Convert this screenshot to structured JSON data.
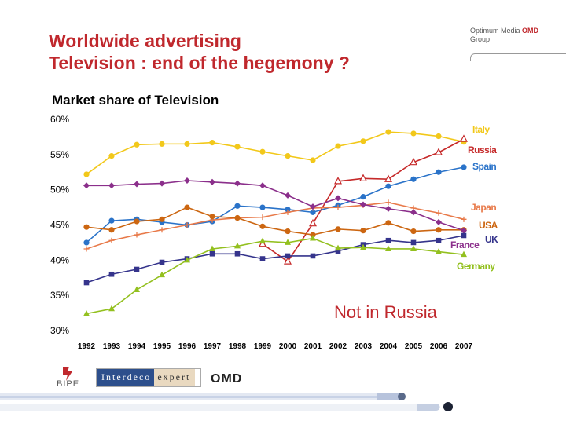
{
  "slide": {
    "title_line1": "Worldwide advertising",
    "title_line2": "Television : end of the hegemony ?"
  },
  "brand": {
    "name_part1": "Optimum Media ",
    "name_omd": "OMD",
    "group": "Group"
  },
  "logos": {
    "bipe": "BIPE",
    "interdeco": "Interdeco",
    "expert": "expert",
    "omd": "OMD"
  },
  "chart_data": {
    "type": "line",
    "title": "Market share of Television",
    "xlabel": "",
    "ylabel": "",
    "x": [
      "1992",
      "1993",
      "1994",
      "1995",
      "1996",
      "1997",
      "1998",
      "1999",
      "2000",
      "2001",
      "2002",
      "2003",
      "2004",
      "2005",
      "2006",
      "2007"
    ],
    "ylim": [
      30,
      60
    ],
    "yticks": [
      "30%",
      "35%",
      "40%",
      "45%",
      "50%",
      "55%",
      "60%"
    ],
    "grid": false,
    "annotation": "Not in Russia",
    "series": [
      {
        "name": "Italy",
        "color": "#f2c81a",
        "marker": "circle",
        "values": [
          52.2,
          54.8,
          56.4,
          56.5,
          56.5,
          56.7,
          56.1,
          55.4,
          54.8,
          54.2,
          56.2,
          56.9,
          58.2,
          58.0,
          57.6,
          56.8
        ]
      },
      {
        "name": "Russia",
        "color": "#c62a2a",
        "marker": "open-triangle",
        "values": [
          null,
          null,
          null,
          null,
          null,
          null,
          null,
          42.3,
          39.8,
          45.2,
          51.2,
          51.6,
          51.5,
          53.9,
          55.3,
          57.2
        ]
      },
      {
        "name": "Spain",
        "color": "#2a73c9",
        "marker": "circle",
        "values": [
          42.5,
          45.6,
          45.8,
          45.4,
          45.0,
          45.5,
          47.7,
          47.5,
          47.2,
          46.8,
          47.8,
          49.0,
          50.5,
          51.5,
          52.5,
          53.2
        ]
      },
      {
        "name": "Japan",
        "color": "#e87a4a",
        "marker": "plus",
        "values": [
          41.6,
          42.8,
          43.6,
          44.3,
          45.0,
          45.7,
          46.0,
          46.1,
          46.8,
          47.4,
          47.5,
          47.8,
          48.2,
          47.4,
          46.7,
          45.8
        ]
      },
      {
        "name": "USA",
        "color": "#cc6611",
        "marker": "circle",
        "values": [
          44.7,
          44.3,
          45.5,
          45.8,
          47.5,
          46.2,
          46.0,
          44.8,
          44.1,
          43.6,
          44.4,
          44.2,
          45.3,
          44.1,
          44.3,
          44.3
        ]
      },
      {
        "name": "France",
        "color": "#8b2f8b",
        "marker": "diamond",
        "values": [
          50.6,
          50.6,
          50.8,
          50.9,
          51.3,
          51.1,
          50.9,
          50.6,
          49.2,
          47.6,
          48.8,
          47.9,
          47.3,
          46.8,
          45.4,
          44.2
        ]
      },
      {
        "name": "UK",
        "color": "#35348c",
        "marker": "square",
        "values": [
          36.8,
          38.0,
          38.7,
          39.7,
          40.2,
          40.9,
          40.9,
          40.2,
          40.6,
          40.6,
          41.3,
          42.2,
          42.8,
          42.5,
          42.8,
          43.5
        ]
      },
      {
        "name": "Germany",
        "color": "#93c01f",
        "marker": "triangle",
        "values": [
          32.4,
          33.1,
          35.8,
          37.9,
          40.0,
          41.6,
          42.0,
          42.7,
          42.5,
          43.1,
          41.7,
          41.8,
          41.6,
          41.6,
          41.2,
          40.8
        ]
      }
    ]
  }
}
